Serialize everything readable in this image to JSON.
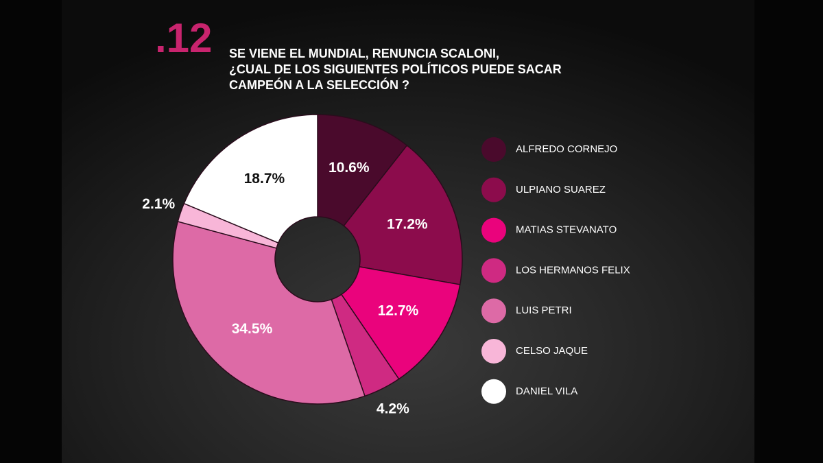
{
  "chart_data": {
    "type": "donut",
    "number_label": ".12",
    "title_lines": [
      "SE VIENE EL MUNDIAL, RENUNCIA SCALONI,",
      "¿CUAL DE LOS SIGUIENTES POLÍTICOS PUEDE SACAR",
      "CAMPEÓN A LA SELECCIÓN ?"
    ],
    "categories": [
      "ALFREDO CORNEJO",
      "ULPIANO SUAREZ",
      "MATIAS STEVANATO",
      "LOS HERMANOS FELIX",
      "LUIS PETRI",
      "CELSO JAQUE",
      "DANIEL VILA"
    ],
    "values": [
      10.6,
      17.2,
      12.7,
      4.2,
      34.5,
      2.1,
      18.7
    ],
    "value_labels": [
      "10.6%",
      "17.2%",
      "12.7%",
      "4.2%",
      "34.5%",
      "2.1%",
      "18.7%"
    ],
    "colors": [
      "#4a0a2c",
      "#8c0c4c",
      "#ea037c",
      "#cf2a82",
      "#dd6aa6",
      "#f8b6d8",
      "#ffffff"
    ]
  }
}
